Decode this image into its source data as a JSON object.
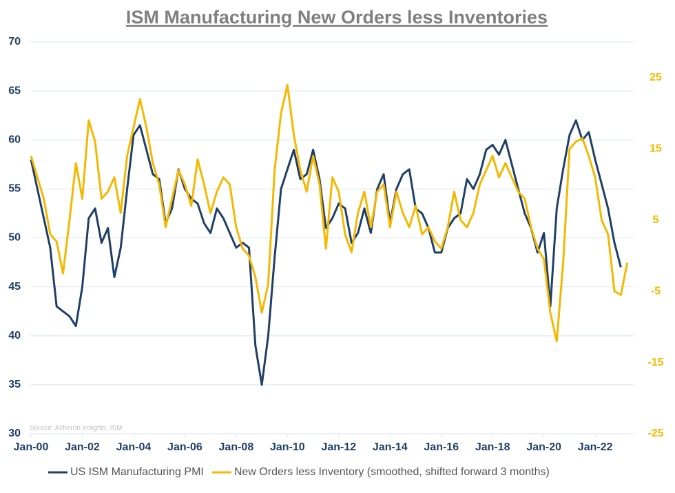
{
  "chart_data": {
    "type": "line",
    "title": "ISM Manufacturing New Orders less Inventories",
    "annotation": "Source: Acheron Insights, ISM",
    "x": [
      2000,
      2000.25,
      2000.5,
      2000.75,
      2001,
      2001.25,
      2001.5,
      2001.75,
      2002,
      2002.25,
      2002.5,
      2002.75,
      2003,
      2003.25,
      2003.5,
      2003.75,
      2004,
      2004.25,
      2004.5,
      2004.75,
      2005,
      2005.25,
      2005.5,
      2005.75,
      2006,
      2006.25,
      2006.5,
      2006.75,
      2007,
      2007.25,
      2007.5,
      2007.75,
      2008,
      2008.25,
      2008.5,
      2008.75,
      2009,
      2009.25,
      2009.5,
      2009.75,
      2010,
      2010.25,
      2010.5,
      2010.75,
      2011,
      2011.25,
      2011.5,
      2011.75,
      2012,
      2012.25,
      2012.5,
      2012.75,
      2013,
      2013.25,
      2013.5,
      2013.75,
      2014,
      2014.25,
      2014.5,
      2014.75,
      2015,
      2015.25,
      2015.5,
      2015.75,
      2016,
      2016.25,
      2016.5,
      2016.75,
      2017,
      2017.25,
      2017.5,
      2017.75,
      2018,
      2018.25,
      2018.5,
      2018.75,
      2019,
      2019.25,
      2019.5,
      2019.75,
      2020,
      2020.25,
      2020.5,
      2020.75,
      2021,
      2021.25,
      2021.5,
      2021.75,
      2022,
      2022.25,
      2022.5,
      2022.75,
      2023,
      2023.25
    ],
    "series": [
      {
        "name": "US ISM Manufacturing PMI",
        "color": "#1f3f66",
        "values": [
          58,
          55,
          52,
          49,
          43,
          42.5,
          42,
          41,
          45,
          52,
          53,
          49.5,
          51,
          46,
          49,
          55,
          60.5,
          61.5,
          59,
          56.5,
          56,
          51.5,
          53,
          57,
          55,
          54,
          53.5,
          51.5,
          50.5,
          53,
          52,
          50.5,
          49,
          49.5,
          49,
          39,
          35,
          40,
          48,
          55,
          57,
          59,
          56,
          56.5,
          59,
          56,
          51,
          52,
          53.5,
          53,
          49.5,
          50.5,
          53,
          50.5,
          55,
          56.5,
          51.5,
          55,
          56.5,
          57,
          53,
          52.5,
          51,
          48.5,
          48.5,
          51,
          52,
          52.5,
          56,
          55,
          56.5,
          59,
          59.5,
          58.5,
          60,
          57.5,
          55,
          52.5,
          51,
          48.5,
          50.5,
          43,
          53,
          57,
          60.5,
          62,
          60,
          60.8,
          58,
          55.5,
          53,
          49.5,
          47,
          null
        ]
      },
      {
        "name": "New Orders less Inventory (smoothed, shifted forward 3 months)",
        "color": "#f5b800",
        "axis": "y2",
        "values": [
          14,
          11,
          8,
          3,
          2,
          -2.5,
          5,
          13,
          8,
          19,
          16,
          8,
          9,
          11,
          6,
          14,
          18,
          22,
          18,
          13,
          10,
          4,
          8,
          12,
          10,
          7,
          13.5,
          10,
          6,
          9,
          11,
          10,
          4,
          1,
          0,
          -3,
          -8,
          -4,
          12,
          20,
          24,
          17,
          12,
          9,
          14,
          10,
          1,
          11,
          9,
          3,
          0.5,
          6,
          9,
          4,
          9,
          10,
          4,
          9,
          6,
          4,
          7,
          3,
          4,
          2,
          1,
          4,
          9,
          5,
          4,
          6,
          10,
          12,
          14,
          11,
          13,
          11,
          9,
          8,
          4,
          1,
          -0.5,
          -8,
          -12,
          -1,
          15,
          16,
          16.5,
          14,
          11,
          5,
          3,
          -5,
          -5.5,
          -1
        ]
      }
    ],
    "xlim": [
      2000,
      2023.5
    ],
    "xticks": [
      {
        "value": 2000,
        "label": "Jan-00"
      },
      {
        "value": 2002,
        "label": "Jan-02"
      },
      {
        "value": 2004,
        "label": "Jan-04"
      },
      {
        "value": 2006,
        "label": "Jan-06"
      },
      {
        "value": 2008,
        "label": "Jan-08"
      },
      {
        "value": 2010,
        "label": "Jan-10"
      },
      {
        "value": 2012,
        "label": "Jan-12"
      },
      {
        "value": 2014,
        "label": "Jan-14"
      },
      {
        "value": 2016,
        "label": "Jan-16"
      },
      {
        "value": 2018,
        "label": "Jan-18"
      },
      {
        "value": 2020,
        "label": "Jan-20"
      },
      {
        "value": 2022,
        "label": "Jan-22"
      }
    ],
    "ylim": [
      30,
      70
    ],
    "yticks": [
      30,
      35,
      40,
      45,
      50,
      55,
      60,
      65,
      70
    ],
    "y2lim": [
      -25,
      30
    ],
    "y2ticks": [
      -25,
      -15,
      -5,
      5,
      15,
      25
    ],
    "grid": true
  }
}
